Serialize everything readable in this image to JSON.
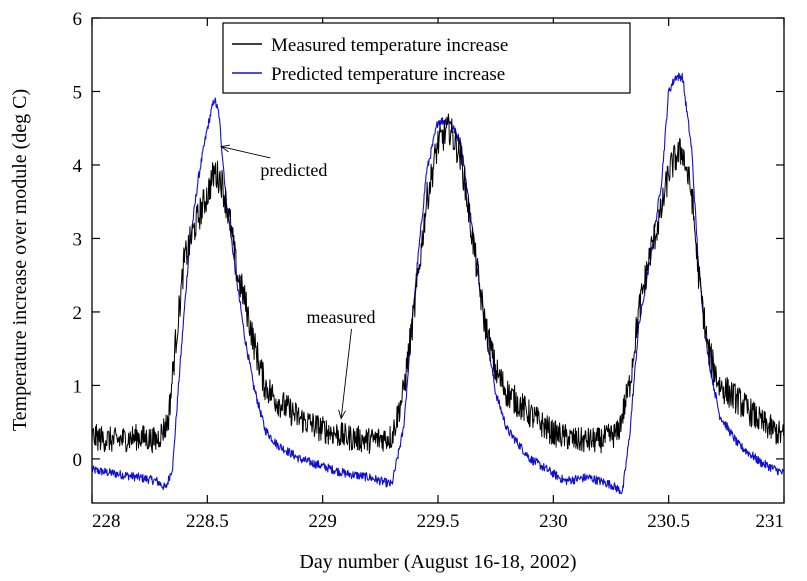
{
  "chart_data": {
    "type": "line",
    "title": "",
    "xlabel": "Day number (August 16-18, 2002)",
    "ylabel": "Temperature increase over module (deg C)",
    "xlim": [
      228,
      231
    ],
    "ylim": [
      -0.6,
      6
    ],
    "x_ticks": [
      228,
      228.5,
      229,
      229.5,
      230,
      230.5,
      231
    ],
    "x_tick_labels": [
      "228",
      "228.5",
      "229",
      "229.5",
      "230",
      "230.5",
      "231"
    ],
    "y_ticks": [
      0,
      1,
      2,
      3,
      4,
      5,
      6
    ],
    "y_tick_labels": [
      "0",
      "1",
      "2",
      "3",
      "4",
      "5",
      "6"
    ],
    "grid": false,
    "legend_position": "top-center",
    "series": [
      {
        "name": "Measured temperature increase",
        "color": "#000000",
        "noise": 0.22,
        "x": [
          228.0,
          228.1,
          228.2,
          228.28,
          228.33,
          228.36,
          228.4,
          228.45,
          228.5,
          228.53,
          228.56,
          228.6,
          228.63,
          228.66,
          228.7,
          228.75,
          228.8,
          228.9,
          229.0,
          229.1,
          229.2,
          229.3,
          229.35,
          229.4,
          229.45,
          229.5,
          229.55,
          229.6,
          229.65,
          229.7,
          229.75,
          229.8,
          229.9,
          230.0,
          230.1,
          230.2,
          230.28,
          230.33,
          230.37,
          230.42,
          230.47,
          230.5,
          230.53,
          230.56,
          230.6,
          230.63,
          230.67,
          230.72,
          230.8,
          230.9,
          231.0
        ],
        "y": [
          0.3,
          0.25,
          0.3,
          0.25,
          0.5,
          1.5,
          2.7,
          3.2,
          3.6,
          3.9,
          3.8,
          3.2,
          2.5,
          2.2,
          1.6,
          1.0,
          0.8,
          0.55,
          0.4,
          0.3,
          0.25,
          0.3,
          0.9,
          2.1,
          3.5,
          4.3,
          4.5,
          4.1,
          3.0,
          1.9,
          1.2,
          0.9,
          0.6,
          0.35,
          0.25,
          0.25,
          0.35,
          1.0,
          2.0,
          2.8,
          3.4,
          3.9,
          4.1,
          4.2,
          3.6,
          2.5,
          1.5,
          1.0,
          0.8,
          0.5,
          0.3
        ]
      },
      {
        "name": "Predicted temperature increase",
        "color": "#1010d0",
        "noise": 0.06,
        "x": [
          228.0,
          228.1,
          228.2,
          228.28,
          228.32,
          228.35,
          228.38,
          228.42,
          228.46,
          228.5,
          228.53,
          228.55,
          228.58,
          228.62,
          228.66,
          228.7,
          228.75,
          228.8,
          228.9,
          229.0,
          229.1,
          229.2,
          229.3,
          229.35,
          229.4,
          229.45,
          229.5,
          229.55,
          229.6,
          229.65,
          229.7,
          229.75,
          229.8,
          229.9,
          230.0,
          230.05,
          230.15,
          230.25,
          230.3,
          230.33,
          230.37,
          230.42,
          230.47,
          230.5,
          230.53,
          230.56,
          230.6,
          230.63,
          230.67,
          230.72,
          230.8,
          230.9,
          231.0
        ],
        "y": [
          -0.15,
          -0.2,
          -0.25,
          -0.3,
          -0.4,
          -0.1,
          1.2,
          2.8,
          3.8,
          4.5,
          4.9,
          4.7,
          3.6,
          2.6,
          1.7,
          1.0,
          0.4,
          0.2,
          0.0,
          -0.1,
          -0.2,
          -0.25,
          -0.35,
          0.4,
          2.3,
          3.9,
          4.6,
          4.6,
          4.3,
          3.1,
          1.9,
          0.9,
          0.4,
          0.0,
          -0.2,
          -0.3,
          -0.25,
          -0.35,
          -0.45,
          0.3,
          1.8,
          2.7,
          3.8,
          5.0,
          5.2,
          5.2,
          4.2,
          2.6,
          1.4,
          0.6,
          0.2,
          -0.05,
          -0.2
        ]
      }
    ],
    "annotations": [
      {
        "text": "predicted",
        "x": 228.73,
        "y": 3.85,
        "arrow_to": [
          228.56,
          4.25
        ]
      },
      {
        "text": "measured",
        "x": 228.93,
        "y": 1.85,
        "arrow_to": [
          229.08,
          0.55
        ]
      }
    ]
  }
}
